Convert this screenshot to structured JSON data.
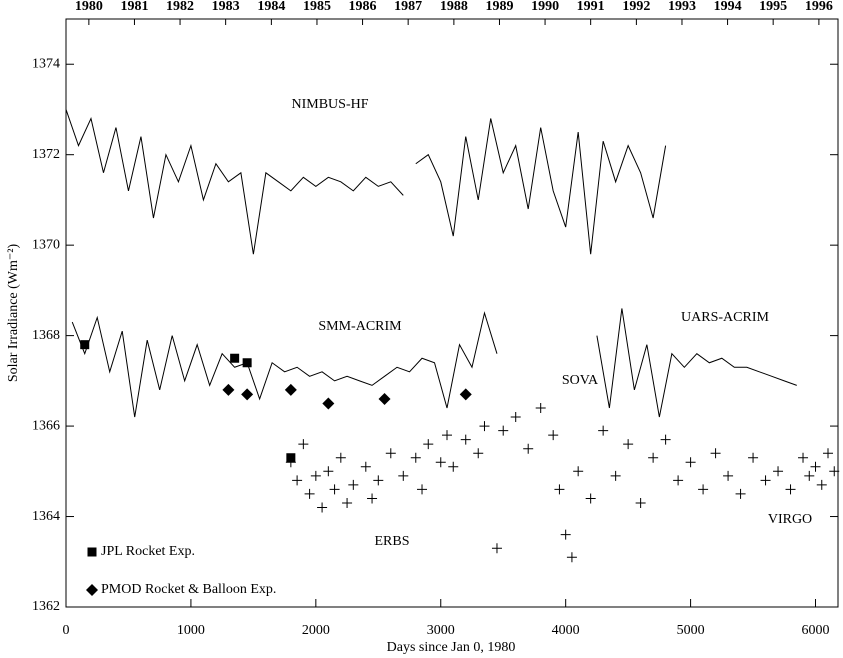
{
  "chart_data": {
    "type": "timeseries",
    "xlabel": "Days since Jan 0, 1980",
    "ylabel": "Solar Irradiance (Wm⁻²)",
    "xlim": [
      0,
      6180
    ],
    "ylim": [
      1362,
      1375
    ],
    "xticks": [
      0,
      1000,
      2000,
      3000,
      4000,
      5000,
      6000
    ],
    "yticks": [
      1362,
      1364,
      1366,
      1368,
      1370,
      1372,
      1374
    ],
    "x2ticks": [
      {
        "value": 183,
        "label": "1980"
      },
      {
        "value": 548,
        "label": "1981"
      },
      {
        "value": 913,
        "label": "1982"
      },
      {
        "value": 1278,
        "label": "1983"
      },
      {
        "value": 1644,
        "label": "1984"
      },
      {
        "value": 2009,
        "label": "1985"
      },
      {
        "value": 2374,
        "label": "1986"
      },
      {
        "value": 2739,
        "label": "1987"
      },
      {
        "value": 3105,
        "label": "1988"
      },
      {
        "value": 3470,
        "label": "1989"
      },
      {
        "value": 3835,
        "label": "1990"
      },
      {
        "value": 4200,
        "label": "1991"
      },
      {
        "value": 4566,
        "label": "1992"
      },
      {
        "value": 4931,
        "label": "1993"
      },
      {
        "value": 5296,
        "label": "1994"
      },
      {
        "value": 5661,
        "label": "1995"
      },
      {
        "value": 6027,
        "label": "1996"
      }
    ],
    "color": "#000000",
    "annotations": [
      "SOVA"
    ],
    "series": [
      {
        "name": "NIMBUS-HF",
        "marker": "line",
        "x": [
          0,
          100,
          200,
          300,
          400,
          500,
          600,
          700,
          800,
          900,
          1000,
          1100,
          1200,
          1300,
          1400,
          1500,
          1600,
          1700,
          1800,
          1900,
          2000,
          2100,
          2200,
          2300,
          2400,
          2500,
          2600,
          2700,
          2750,
          2800,
          2900,
          3000,
          3100,
          3200,
          3300,
          3400,
          3500,
          3600,
          3700,
          3800,
          3900,
          4000,
          4100,
          4200,
          4300,
          4400,
          4500,
          4600,
          4700,
          4800
        ],
        "values": [
          1373.0,
          1372.2,
          1372.8,
          1371.6,
          1372.6,
          1371.2,
          1372.4,
          1370.6,
          1372.0,
          1371.4,
          1372.2,
          1371.0,
          1371.8,
          1371.4,
          1371.6,
          1369.8,
          1371.6,
          1371.4,
          1371.2,
          1371.5,
          1371.3,
          1371.5,
          1371.4,
          1371.2,
          1371.5,
          1371.3,
          1371.4,
          1371.1,
          null,
          1371.8,
          1372.0,
          1371.4,
          1370.2,
          1372.4,
          1371.0,
          1372.8,
          1371.6,
          1372.2,
          1370.8,
          1372.6,
          1371.2,
          1370.4,
          1372.5,
          1369.8,
          1372.3,
          1371.4,
          1372.2,
          1371.6,
          1370.6,
          1372.2
        ]
      },
      {
        "name": "SMM-ACRIM",
        "marker": "line",
        "x": [
          50,
          150,
          250,
          350,
          450,
          550,
          650,
          750,
          850,
          950,
          1050,
          1150,
          1250,
          1350,
          1450,
          1550,
          1650,
          1750,
          1850,
          1950,
          2050,
          2150,
          2250,
          2350,
          2450,
          2550,
          2650,
          2750,
          2850,
          2950,
          3050,
          3150,
          3250,
          3350,
          3450
        ],
        "values": [
          1368.3,
          1367.6,
          1368.4,
          1367.2,
          1368.1,
          1366.2,
          1367.9,
          1366.8,
          1368.0,
          1367.0,
          1367.8,
          1366.9,
          1367.6,
          1367.3,
          1367.4,
          1366.6,
          1367.4,
          1367.2,
          1367.3,
          1367.1,
          1367.2,
          1367.0,
          1367.1,
          1367.0,
          1366.9,
          1367.1,
          1367.3,
          1367.2,
          1367.5,
          1367.4,
          1366.4,
          1367.8,
          1367.3,
          1368.5,
          1367.6
        ]
      },
      {
        "name": "UARS-ACRIM",
        "marker": "line",
        "x": [
          4250,
          4350,
          4450,
          4550,
          4650,
          4750,
          4850,
          4950,
          5050,
          5150,
          5250,
          5350,
          5450,
          5550,
          5650,
          5750,
          5850
        ],
        "values": [
          1368.0,
          1366.4,
          1368.6,
          1366.8,
          1367.8,
          1366.2,
          1367.6,
          1367.3,
          1367.6,
          1367.4,
          1367.5,
          1367.3,
          1367.3,
          1367.2,
          1367.1,
          1367.0,
          1366.9
        ]
      },
      {
        "name": "ERBS",
        "marker": "plus",
        "x": [
          1800,
          1850,
          1900,
          1950,
          2000,
          2050,
          2100,
          2150,
          2200,
          2250,
          2300,
          2400,
          2450,
          2500,
          2600,
          2700,
          2800,
          2850,
          2900,
          3000,
          3050,
          3100,
          3200,
          3300,
          3350,
          3450,
          3500,
          3600,
          3700,
          3800,
          3900,
          3950,
          4000,
          4050,
          4100,
          4200,
          4300,
          4400,
          4500,
          4600,
          4700,
          4800,
          4900,
          5000,
          5100,
          5200,
          5300,
          5400,
          5500,
          5600
        ],
        "values": [
          1365.2,
          1364.8,
          1365.6,
          1364.5,
          1364.9,
          1364.2,
          1365.0,
          1364.6,
          1365.3,
          1364.3,
          1364.7,
          1365.1,
          1364.4,
          1364.8,
          1365.4,
          1364.9,
          1365.3,
          1364.6,
          1365.6,
          1365.2,
          1365.8,
          1365.1,
          1365.7,
          1365.4,
          1366.0,
          1363.3,
          1365.9,
          1366.2,
          1365.5,
          1366.4,
          1365.8,
          1364.6,
          1363.6,
          1363.1,
          1365.0,
          1364.4,
          1365.9,
          1364.9,
          1365.6,
          1364.3,
          1365.3,
          1365.7,
          1364.8,
          1365.2,
          1364.6,
          1365.4,
          1364.9,
          1364.5,
          1365.3,
          1364.8
        ]
      },
      {
        "name": "VIRGO",
        "marker": "plus",
        "x": [
          5700,
          5800,
          5900,
          5950,
          6000,
          6050,
          6100,
          6150
        ],
        "values": [
          1365.0,
          1364.6,
          1365.3,
          1364.9,
          1365.1,
          1364.7,
          1365.4,
          1365.0
        ]
      },
      {
        "name": "JPL Rocket Exp.",
        "marker": "square",
        "x": [
          150,
          1350,
          1450,
          1800
        ],
        "values": [
          1367.8,
          1367.5,
          1367.4,
          1365.3
        ]
      },
      {
        "name": "PMOD Rocket & Balloon Exp.",
        "marker": "diamond",
        "x": [
          1300,
          1450,
          1800,
          2100,
          2550,
          3200
        ],
        "values": [
          1366.8,
          1366.7,
          1366.8,
          1366.5,
          1366.6,
          1366.7
        ]
      }
    ]
  }
}
